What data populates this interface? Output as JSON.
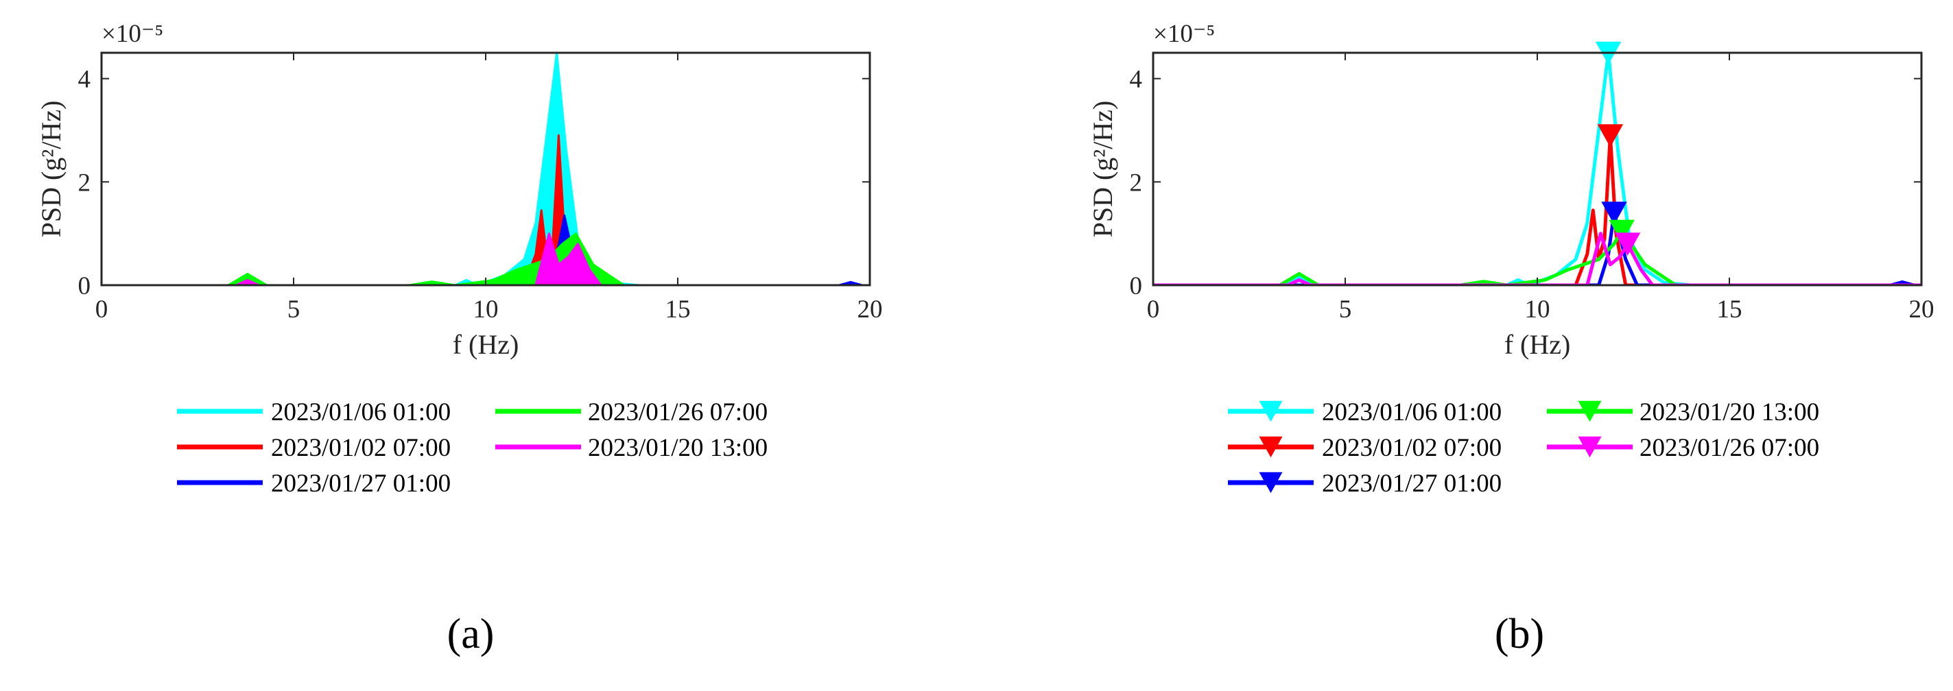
{
  "figure": {
    "panel_labels": [
      "(a)",
      "(b)"
    ]
  },
  "colors": {
    "cyan": "#00ffff",
    "red": "#ff0000",
    "blue": "#0000ff",
    "green": "#00ff00",
    "magenta": "#ff00ff",
    "axis": "#262626"
  },
  "chart_data": [
    {
      "type": "area",
      "panel": "(a)",
      "xlabel": "f (Hz)",
      "ylabel": "PSD (g²/Hz)",
      "y_exponent": "×10⁻⁵",
      "xlim": [
        0,
        20
      ],
      "ylim": [
        0,
        4.5
      ],
      "xticks": [
        0,
        5,
        10,
        15,
        20
      ],
      "yticks": [
        0,
        2,
        4
      ],
      "grid": false,
      "legend_position": "below, two columns",
      "series": [
        {
          "name": "2023/01/06 01:00",
          "color": "#00ffff",
          "marker": "none",
          "x": [
            0,
            3.4,
            3.8,
            4.2,
            9.2,
            9.5,
            9.8,
            10.5,
            11.0,
            11.3,
            11.6,
            11.85,
            12.1,
            12.4,
            12.8,
            13.3,
            14,
            20
          ],
          "y": [
            0,
            0,
            0.15,
            0,
            0,
            0.1,
            0,
            0.2,
            0.5,
            1.2,
            3.0,
            4.5,
            2.6,
            0.9,
            0.3,
            0.05,
            0,
            0
          ]
        },
        {
          "name": "2023/01/02 07:00",
          "color": "#ff0000",
          "marker": "none",
          "x": [
            0,
            11.0,
            11.3,
            11.45,
            11.6,
            11.75,
            11.9,
            12.05,
            12.3,
            20
          ],
          "y": [
            0,
            0,
            0.6,
            1.45,
            0.5,
            0.9,
            2.9,
            1.0,
            0,
            0
          ]
        },
        {
          "name": "2023/01/27 01:00",
          "color": "#0000ff",
          "marker": "none",
          "x": [
            0,
            11.6,
            11.85,
            12.05,
            12.3,
            12.6,
            19.2,
            19.5,
            19.8,
            20
          ],
          "y": [
            0,
            0,
            0.6,
            1.35,
            0.5,
            0,
            0,
            0.06,
            0,
            0
          ]
        },
        {
          "name": "2023/01/26 07:00",
          "color": "#00ff00",
          "marker": "none",
          "x": [
            0,
            3.3,
            3.8,
            4.3,
            8,
            8.6,
            9.2,
            10.2,
            10.8,
            11.2,
            11.6,
            12.0,
            12.35,
            12.8,
            13.1,
            13.6,
            20
          ],
          "y": [
            0,
            0,
            0.22,
            0,
            0,
            0.07,
            0,
            0.1,
            0.3,
            0.4,
            0.5,
            0.8,
            1.0,
            0.4,
            0.25,
            0,
            0
          ]
        },
        {
          "name": "2023/01/20 13:00",
          "color": "#ff00ff",
          "marker": "none",
          "x": [
            0,
            3.5,
            3.8,
            4.1,
            11.3,
            11.65,
            11.9,
            12.15,
            12.4,
            12.7,
            13.0,
            20
          ],
          "y": [
            0,
            0,
            0.1,
            0,
            0,
            1.0,
            0.4,
            0.55,
            0.8,
            0.3,
            0,
            0
          ]
        }
      ]
    },
    {
      "type": "line",
      "panel": "(b)",
      "xlabel": "f (Hz)",
      "ylabel": "PSD (g²/Hz)",
      "y_exponent": "×10⁻⁵",
      "xlim": [
        0,
        20
      ],
      "ylim": [
        0,
        4.5
      ],
      "xticks": [
        0,
        5,
        10,
        15,
        20
      ],
      "yticks": [
        0,
        2,
        4
      ],
      "grid": false,
      "legend_position": "below, two columns",
      "series": [
        {
          "name": "2023/01/06 01:00",
          "color": "#00ffff",
          "marker": "down-triangle",
          "peak": [
            11.85,
            4.5
          ],
          "x": [
            0,
            3.4,
            3.8,
            4.2,
            9.2,
            9.5,
            9.8,
            10.5,
            11.0,
            11.3,
            11.6,
            11.85,
            12.1,
            12.4,
            12.8,
            13.3,
            14,
            20
          ],
          "y": [
            0,
            0,
            0.15,
            0,
            0,
            0.1,
            0,
            0.2,
            0.5,
            1.2,
            3.0,
            4.5,
            2.6,
            0.9,
            0.3,
            0.05,
            0,
            0
          ]
        },
        {
          "name": "2023/01/02 07:00",
          "color": "#ff0000",
          "marker": "down-triangle",
          "peak": [
            11.9,
            2.9
          ],
          "x": [
            0,
            11.0,
            11.3,
            11.45,
            11.6,
            11.75,
            11.9,
            12.05,
            12.3,
            20
          ],
          "y": [
            0,
            0,
            0.6,
            1.45,
            0.5,
            0.9,
            2.9,
            1.0,
            0,
            0
          ]
        },
        {
          "name": "2023/01/27 01:00",
          "color": "#0000ff",
          "marker": "down-triangle",
          "peak": [
            12.0,
            1.4
          ],
          "x": [
            0,
            11.6,
            11.85,
            12.0,
            12.3,
            12.6,
            19.2,
            19.5,
            19.8,
            20
          ],
          "y": [
            0,
            0,
            0.6,
            1.4,
            0.5,
            0,
            0,
            0.06,
            0,
            0
          ]
        },
        {
          "name": "2023/01/20 13:00",
          "color": "#00ff00",
          "marker": "down-triangle",
          "peak": [
            12.2,
            1.05
          ],
          "x": [
            0,
            3.3,
            3.8,
            4.3,
            8,
            8.6,
            9.2,
            10.2,
            10.8,
            11.2,
            11.6,
            12.0,
            12.2,
            12.8,
            13.1,
            13.6,
            20
          ],
          "y": [
            0,
            0,
            0.22,
            0,
            0,
            0.07,
            0,
            0.1,
            0.3,
            0.4,
            0.5,
            0.8,
            1.05,
            0.4,
            0.25,
            0,
            0
          ]
        },
        {
          "name": "2023/01/26 07:00",
          "color": "#ff00ff",
          "marker": "down-triangle",
          "peak": [
            12.35,
            0.8
          ],
          "x": [
            0,
            3.5,
            3.8,
            4.1,
            11.3,
            11.65,
            11.9,
            12.15,
            12.35,
            12.7,
            13.0,
            20
          ],
          "y": [
            0,
            0,
            0.1,
            0,
            0,
            1.0,
            0.4,
            0.55,
            0.8,
            0.3,
            0,
            0
          ]
        }
      ]
    }
  ]
}
